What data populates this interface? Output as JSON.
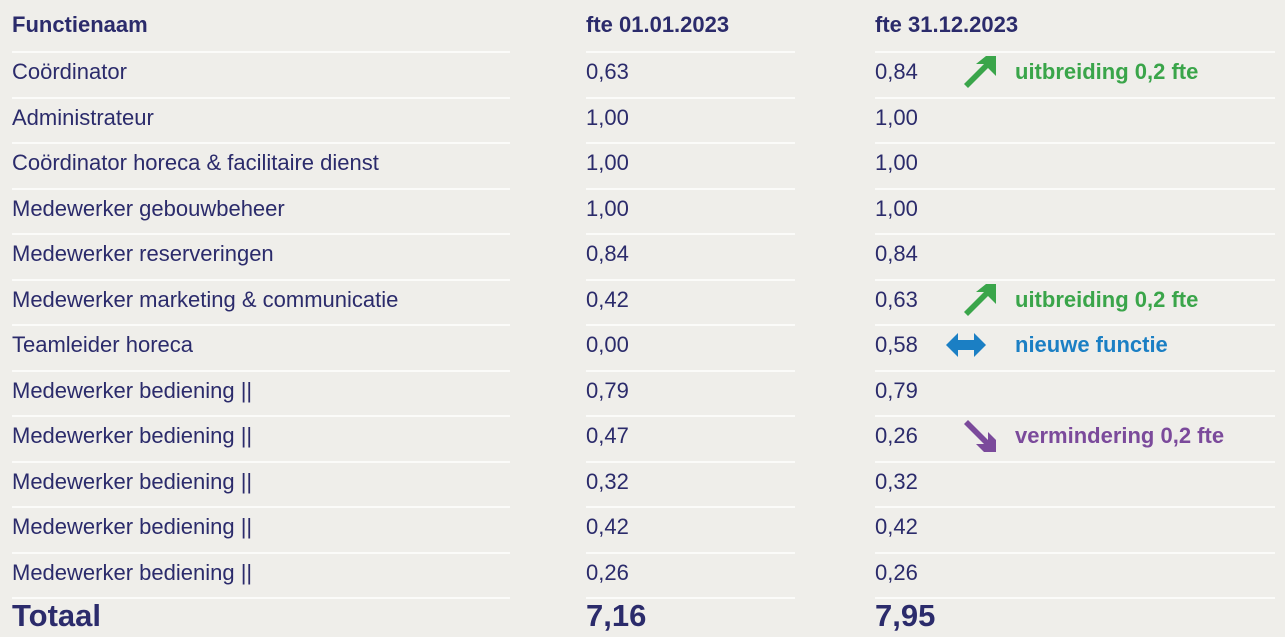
{
  "table": {
    "header": [
      "Functienaam",
      "fte 01.01.2023",
      "fte 31.12.2023"
    ],
    "rows": [
      [
        "Coördinator",
        "0,63",
        "0,84"
      ],
      [
        "Administrateur",
        "1,00",
        "1,00"
      ],
      [
        "Coördinator horeca & facilitaire dienst",
        "1,00",
        "1,00"
      ],
      [
        "Medewerker gebouwbeheer",
        "1,00",
        "1,00"
      ],
      [
        "Medewerker reserveringen",
        "0,84",
        "0,84"
      ],
      [
        "Medewerker marketing & communicatie",
        "0,42",
        "0,63"
      ],
      [
        "Teamleider horeca",
        "0,00",
        "0,58"
      ],
      [
        "Medewerker bediening ||",
        "0,79",
        "0,79"
      ],
      [
        "Medewerker bediening ||",
        "0,47",
        "0,26"
      ],
      [
        "Medewerker bediening ||",
        "0,32",
        "0,32"
      ],
      [
        "Medewerker bediening ||",
        "0,42",
        "0,42"
      ],
      [
        "Medewerker bediening ||",
        "0,26",
        "0,26"
      ]
    ],
    "notes": [
      {
        "row": 0,
        "text": "uitbreiding 0,2 fte",
        "color": "#3aa54a",
        "icon": "up"
      },
      {
        "row": 5,
        "text": "uitbreiding 0,2 fte",
        "color": "#3aa54a",
        "icon": "up"
      },
      {
        "row": 6,
        "text": "nieuwe functie",
        "color": "#1b7fc4",
        "icon": "both"
      },
      {
        "row": 8,
        "text": "vermindering 0,2 fte",
        "color": "#7b4a9b",
        "icon": "down"
      }
    ],
    "total": [
      "Totaal",
      "7,16",
      "7,95"
    ]
  }
}
